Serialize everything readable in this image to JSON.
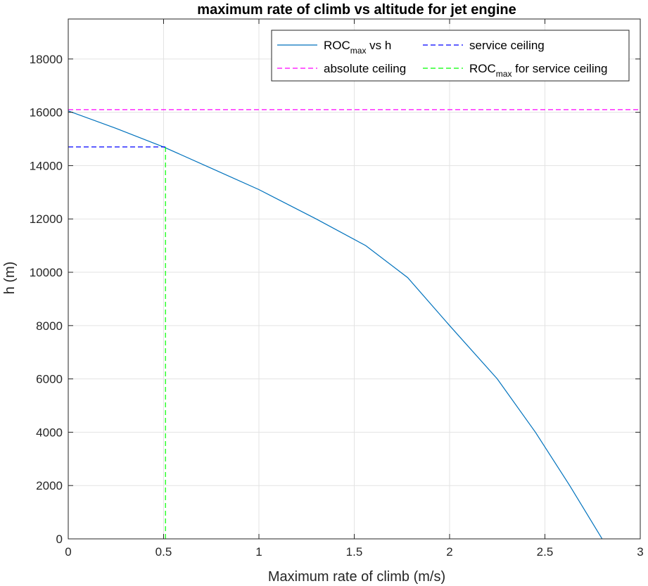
{
  "chart_data": {
    "type": "line",
    "title": "maximum rate of climb vs altitude for jet engine",
    "xlabel": "Maximum rate of climb (m/s)",
    "ylabel": "h (m)",
    "xlim": [
      0,
      3
    ],
    "ylim": [
      0,
      19500
    ],
    "xticks": [
      0,
      0.5,
      1,
      1.5,
      2,
      2.5,
      3
    ],
    "xtick_labels": [
      "0",
      "0.5",
      "1",
      "1.5",
      "2",
      "2.5",
      "3"
    ],
    "yticks": [
      0,
      2000,
      4000,
      6000,
      8000,
      10000,
      12000,
      14000,
      16000,
      18000
    ],
    "ytick_labels": [
      "0",
      "2000",
      "4000",
      "6000",
      "8000",
      "10000",
      "12000",
      "14000",
      "16000",
      "18000"
    ],
    "grid": true,
    "legend_position": "top-right",
    "series": [
      {
        "name": "ROC",
        "name_subscript": "max",
        "name_suffix": " vs h",
        "color": "#0072BD",
        "style": "solid",
        "x": [
          2.8,
          2.63,
          2.45,
          2.25,
          2.0,
          1.78,
          1.56,
          1.3,
          1.0,
          0.75,
          0.5,
          0.25,
          0.0
        ],
        "y": [
          0,
          2000,
          4000,
          6000,
          8000,
          9800,
          11000,
          12000,
          13100,
          13900,
          14700,
          15400,
          16050
        ]
      },
      {
        "name": "service ceiling",
        "color": "#0000ff",
        "style": "dashed",
        "x": [
          0,
          0.51
        ],
        "y": [
          14700,
          14700
        ]
      },
      {
        "name": "absolute ceiling",
        "color": "#ff00ff",
        "style": "dashed",
        "x": [
          0,
          3
        ],
        "y": [
          16100,
          16100
        ]
      },
      {
        "name": "ROC",
        "name_subscript": "max",
        "name_suffix": " for service ceiling",
        "color": "#00ff00",
        "style": "dashed",
        "x": [
          0.51,
          0.51
        ],
        "y": [
          0,
          14700
        ]
      }
    ]
  }
}
